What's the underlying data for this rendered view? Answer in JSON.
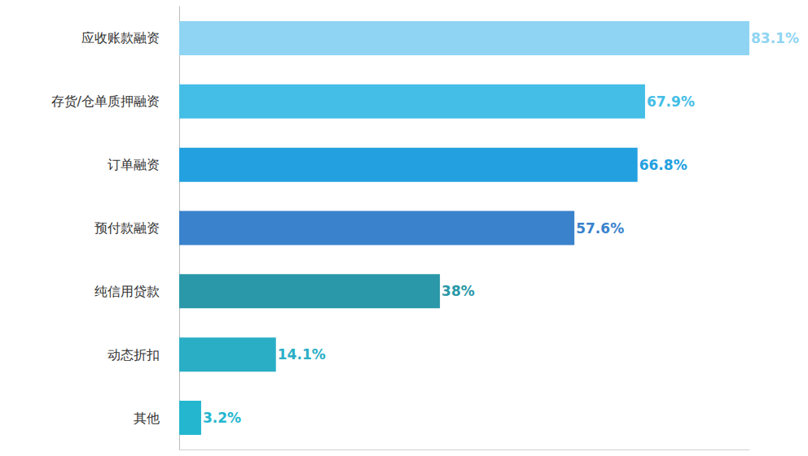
{
  "chart_data": {
    "type": "bar",
    "orientation": "horizontal",
    "categories": [
      "应收账款融资",
      "存货/仓单质押融资",
      "订单融资",
      "预付款融资",
      "纯信用贷款",
      "动态折扣",
      "其他"
    ],
    "values": [
      83.1,
      67.9,
      66.8,
      57.6,
      38,
      14.1,
      3.2
    ],
    "value_labels": [
      "83.1%",
      "67.9%",
      "66.8%",
      "57.6%",
      "38%",
      "14.1%",
      "3.2%"
    ],
    "colors": [
      "#8fd4f2",
      "#44bee6",
      "#22a0df",
      "#3a82cc",
      "#2a98a8",
      "#2aaec6",
      "#24b6cf"
    ],
    "xlim": [
      0,
      83.1
    ],
    "xticks": [],
    "grid": false,
    "data_labels": true,
    "tick_labels": "y"
  }
}
